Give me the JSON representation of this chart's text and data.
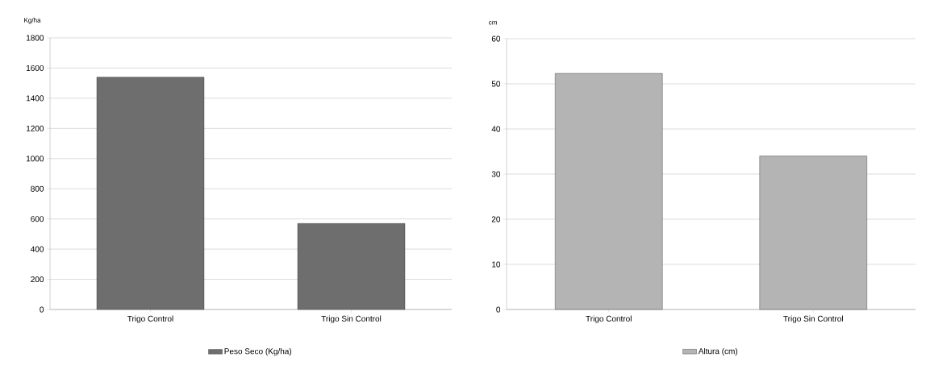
{
  "chart_data": [
    {
      "type": "bar",
      "ylabel": "Kg/ha",
      "categories": [
        "Trigo Control",
        "Trigo Sin Control"
      ],
      "series": [
        {
          "name": "Peso Seco (Kg/ha)",
          "color": "#6e6e6e",
          "values": [
            1540,
            570
          ]
        }
      ],
      "ylim": [
        0,
        1800
      ],
      "yticks": [
        0,
        200,
        400,
        600,
        800,
        1000,
        1200,
        1400,
        1600,
        1800
      ],
      "grid": "y",
      "legend": "bottom"
    },
    {
      "type": "bar",
      "ylabel": "cm",
      "categories": [
        "Trigo Control",
        "Trigo Sin Control"
      ],
      "series": [
        {
          "name": "Altura (cm)",
          "color": "#b4b4b4",
          "values": [
            52.3,
            34
          ]
        }
      ],
      "ylim": [
        0,
        60
      ],
      "yticks": [
        0,
        10,
        20,
        30,
        40,
        50,
        60
      ],
      "grid": "y",
      "legend": "bottom"
    }
  ]
}
